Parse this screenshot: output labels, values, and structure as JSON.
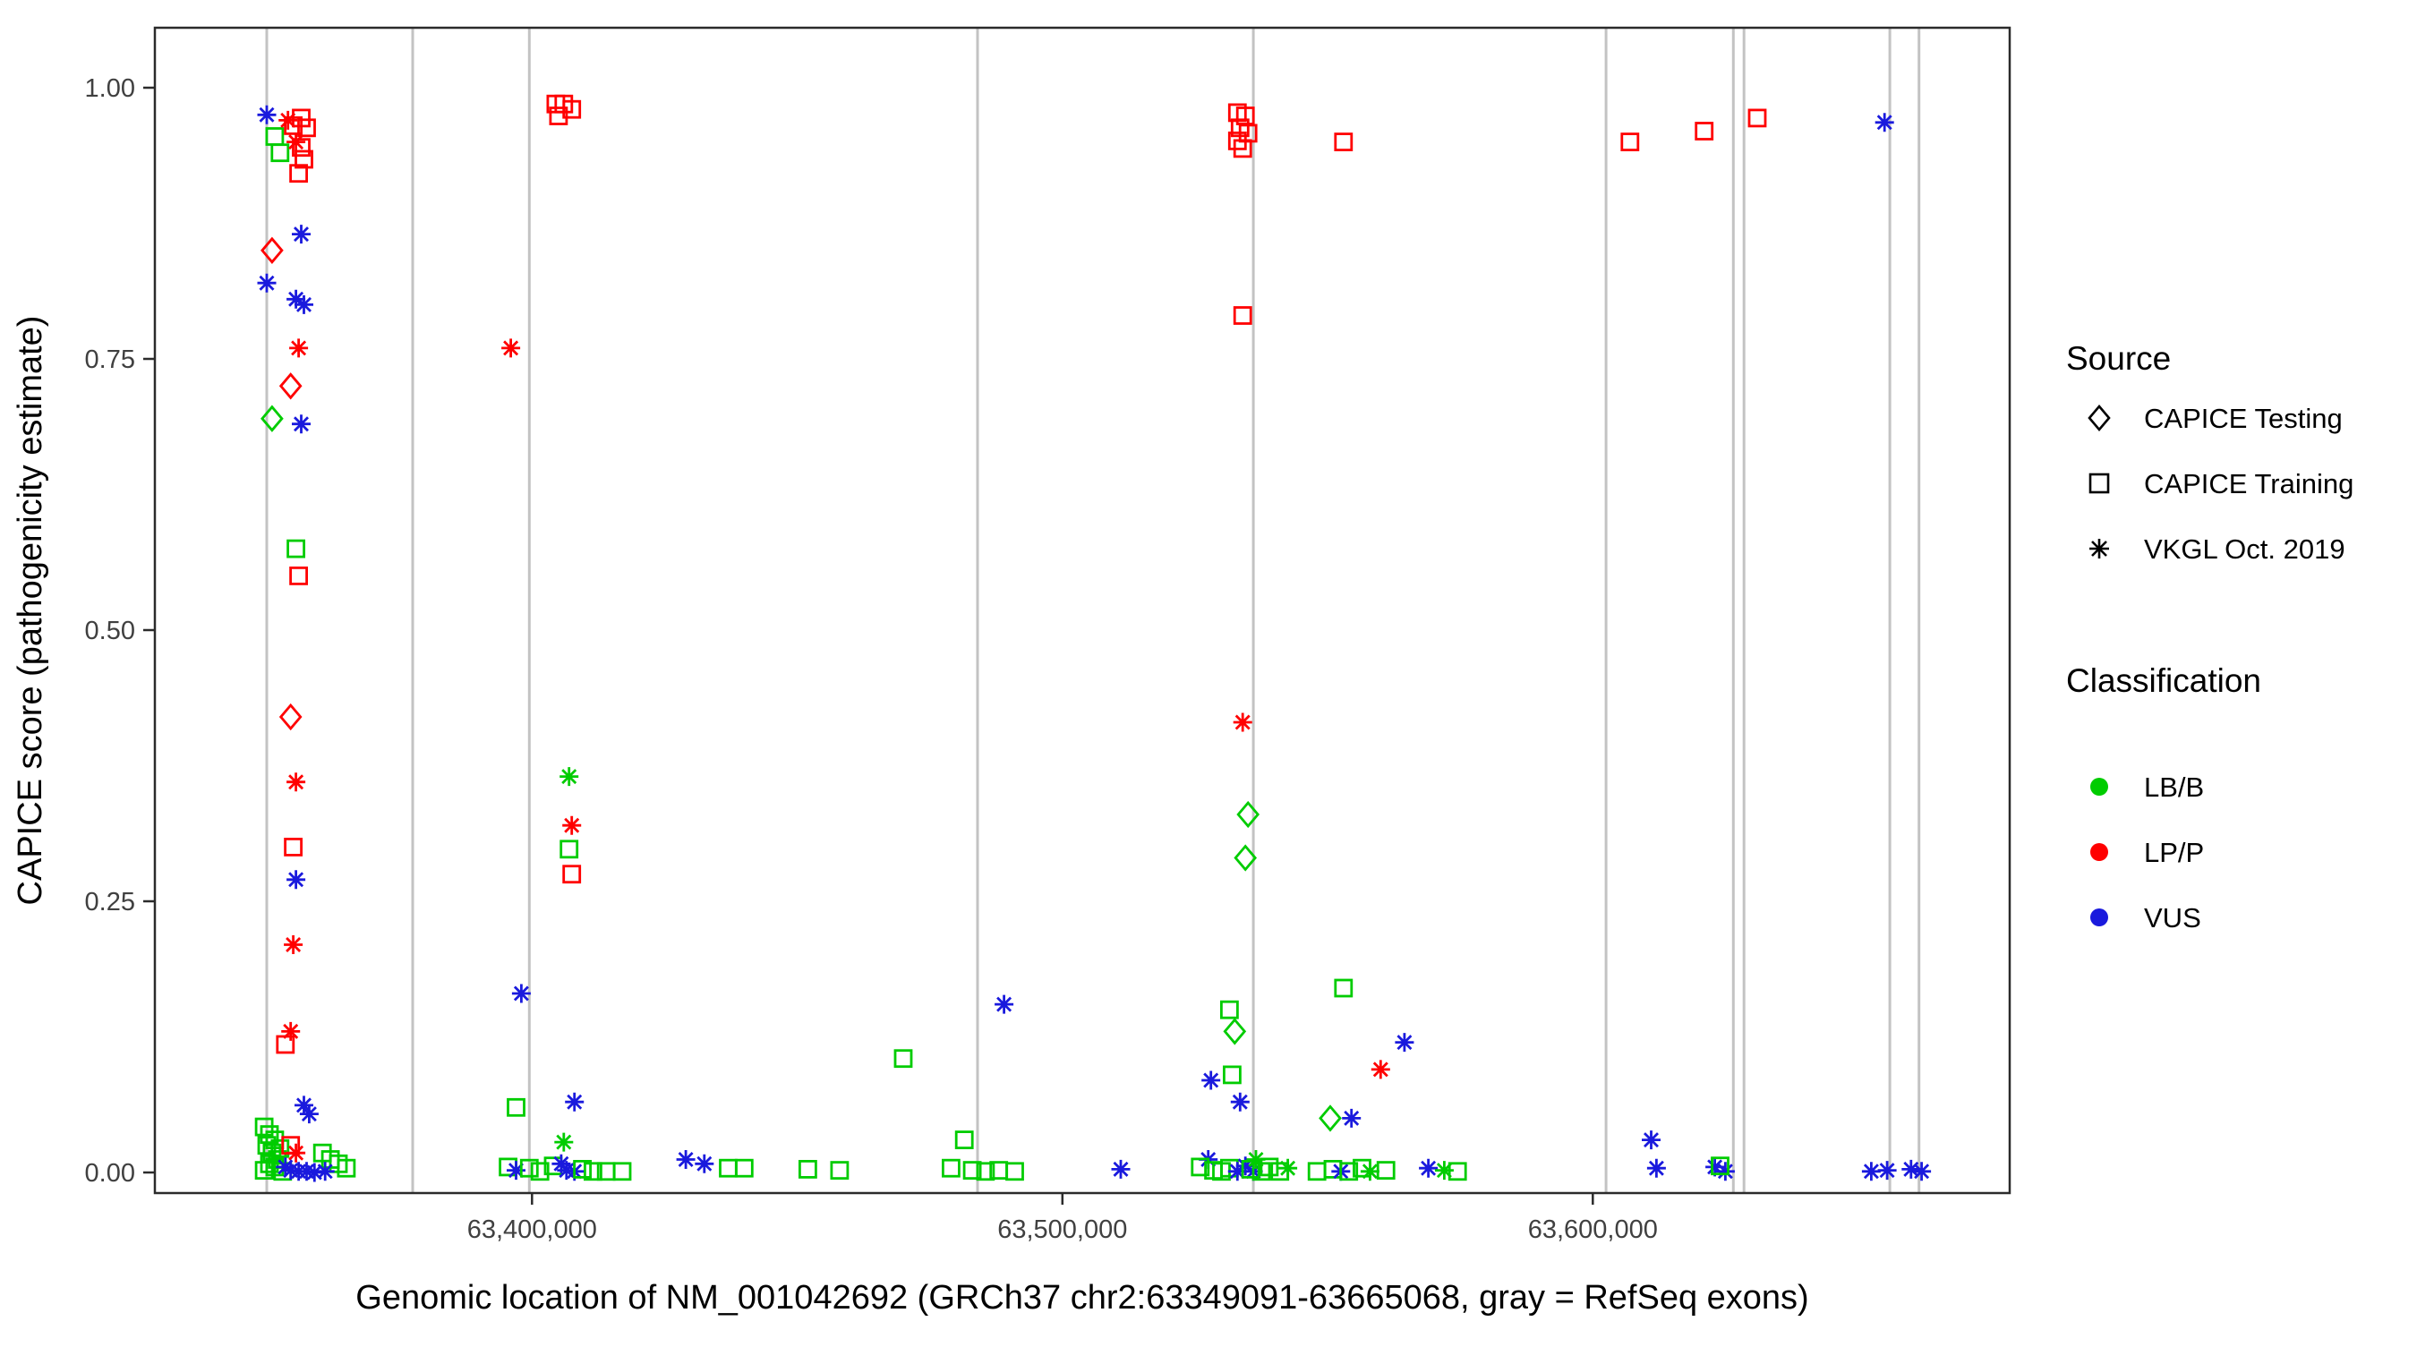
{
  "chart_data": {
    "type": "scatter",
    "title": "",
    "xlabel": "Genomic location of NM_001042692 (GRCh37 chr2:63349091-63665068, gray = RefSeq exons)",
    "ylabel": "CAPICE score (pathogenicity estimate)",
    "x_domain": [
      63328900,
      63678600
    ],
    "y_domain": [
      0,
      1
    ],
    "x_ticks": [
      {
        "v": 63400000,
        "label": "63,400,000"
      },
      {
        "v": 63500000,
        "label": "63,500,000"
      },
      {
        "v": 63600000,
        "label": "63,600,000"
      }
    ],
    "y_ticks": [
      {
        "v": 0.0,
        "label": "0.00"
      },
      {
        "v": 0.25,
        "label": "0.25"
      },
      {
        "v": 0.5,
        "label": "0.50"
      },
      {
        "v": 0.75,
        "label": "0.75"
      },
      {
        "v": 1.0,
        "label": "1.00"
      }
    ],
    "grid": false,
    "exon_color": "#c3c3c3",
    "exons": [
      63350000,
      63377500,
      63399500,
      63484000,
      63536000,
      63602500,
      63626500,
      63628500,
      63656000,
      63661500
    ],
    "colors": {
      "g": "#00cc00",
      "r": "#ff0000",
      "b": "#1a1add"
    },
    "shapes": {
      "d": "CAPICE Testing (diamond)",
      "q": "CAPICE Training (square)",
      "a": "VKGL Oct. 2019 (asterisk)"
    },
    "legend": {
      "source": {
        "title": "Source",
        "items": [
          {
            "label": "CAPICE Testing",
            "shape": "diamond"
          },
          {
            "label": "CAPICE Training",
            "shape": "square"
          },
          {
            "label": "VKGL Oct. 2019",
            "shape": "asterisk"
          }
        ]
      },
      "classification": {
        "title": "Classification",
        "items": [
          {
            "label": "LB/B",
            "color_key": "g"
          },
          {
            "label": "LP/P",
            "color_key": "r"
          },
          {
            "label": "VUS",
            "color_key": "b"
          }
        ]
      }
    },
    "points": [
      [
        63350000,
        0.975,
        "a",
        "b"
      ],
      [
        63351500,
        0.955,
        "q",
        "g"
      ],
      [
        63352500,
        0.94,
        "q",
        "g"
      ],
      [
        63354000,
        0.97,
        "a",
        "r"
      ],
      [
        63355000,
        0.965,
        "q",
        "r"
      ],
      [
        63356500,
        0.972,
        "q",
        "r"
      ],
      [
        63357500,
        0.963,
        "q",
        "r"
      ],
      [
        63355500,
        0.95,
        "a",
        "r"
      ],
      [
        63356500,
        0.945,
        "q",
        "r"
      ],
      [
        63357000,
        0.934,
        "q",
        "r"
      ],
      [
        63356000,
        0.921,
        "q",
        "r"
      ],
      [
        63356500,
        0.865,
        "a",
        "b"
      ],
      [
        63351000,
        0.85,
        "d",
        "r"
      ],
      [
        63350000,
        0.82,
        "a",
        "b"
      ],
      [
        63355500,
        0.805,
        "a",
        "b"
      ],
      [
        63357000,
        0.8,
        "a",
        "b"
      ],
      [
        63356000,
        0.76,
        "a",
        "r"
      ],
      [
        63354500,
        0.725,
        "d",
        "r"
      ],
      [
        63351000,
        0.695,
        "d",
        "g"
      ],
      [
        63356500,
        0.69,
        "a",
        "b"
      ],
      [
        63355500,
        0.575,
        "q",
        "g"
      ],
      [
        63356000,
        0.55,
        "q",
        "r"
      ],
      [
        63354500,
        0.42,
        "d",
        "r"
      ],
      [
        63355500,
        0.36,
        "a",
        "r"
      ],
      [
        63355000,
        0.3,
        "q",
        "r"
      ],
      [
        63355500,
        0.27,
        "a",
        "b"
      ],
      [
        63355000,
        0.21,
        "a",
        "r"
      ],
      [
        63354500,
        0.13,
        "a",
        "r"
      ],
      [
        63353500,
        0.118,
        "q",
        "r"
      ],
      [
        63357000,
        0.062,
        "a",
        "b"
      ],
      [
        63358000,
        0.054,
        "a",
        "b"
      ],
      [
        63349500,
        0.042,
        "q",
        "g"
      ],
      [
        63350500,
        0.035,
        "q",
        "g"
      ],
      [
        63351500,
        0.03,
        "q",
        "g"
      ],
      [
        63350000,
        0.025,
        "q",
        "g"
      ],
      [
        63352500,
        0.022,
        "q",
        "g"
      ],
      [
        63351000,
        0.018,
        "q",
        "g"
      ],
      [
        63352000,
        0.012,
        "q",
        "g"
      ],
      [
        63350500,
        0.008,
        "q",
        "g"
      ],
      [
        63351500,
        0.005,
        "q",
        "g"
      ],
      [
        63349500,
        0.002,
        "q",
        "g"
      ],
      [
        63353000,
        0.001,
        "q",
        "g"
      ],
      [
        63354500,
        0.025,
        "q",
        "r"
      ],
      [
        63355500,
        0.018,
        "a",
        "r"
      ],
      [
        63353500,
        0.005,
        "a",
        "b"
      ],
      [
        63354500,
        0.002,
        "a",
        "b"
      ],
      [
        63356000,
        0.001,
        "a",
        "b"
      ],
      [
        63357500,
        0.001,
        "a",
        "b"
      ],
      [
        63359000,
        0.0,
        "a",
        "b"
      ],
      [
        63360500,
        0.018,
        "q",
        "g"
      ],
      [
        63362000,
        0.012,
        "q",
        "g"
      ],
      [
        63363500,
        0.008,
        "q",
        "g"
      ],
      [
        63365000,
        0.004,
        "q",
        "g"
      ],
      [
        63361000,
        0.001,
        "a",
        "b"
      ],
      [
        63404500,
        0.985,
        "q",
        "r"
      ],
      [
        63406000,
        0.985,
        "q",
        "r"
      ],
      [
        63407500,
        0.98,
        "q",
        "r"
      ],
      [
        63405000,
        0.974,
        "q",
        "r"
      ],
      [
        63396000,
        0.76,
        "a",
        "r"
      ],
      [
        63407000,
        0.365,
        "a",
        "g"
      ],
      [
        63407500,
        0.32,
        "a",
        "r"
      ],
      [
        63407000,
        0.298,
        "q",
        "g"
      ],
      [
        63407500,
        0.275,
        "q",
        "r"
      ],
      [
        63398000,
        0.165,
        "a",
        "b"
      ],
      [
        63397000,
        0.06,
        "q",
        "g"
      ],
      [
        63408000,
        0.065,
        "a",
        "b"
      ],
      [
        63406000,
        0.028,
        "a",
        "g"
      ],
      [
        63395500,
        0.005,
        "q",
        "g"
      ],
      [
        63397000,
        0.002,
        "a",
        "b"
      ],
      [
        63399500,
        0.004,
        "q",
        "g"
      ],
      [
        63401500,
        0.001,
        "q",
        "g"
      ],
      [
        63404000,
        0.006,
        "q",
        "g"
      ],
      [
        63405500,
        0.008,
        "a",
        "b"
      ],
      [
        63406500,
        0.002,
        "a",
        "b"
      ],
      [
        63408000,
        0.001,
        "a",
        "b"
      ],
      [
        63409500,
        0.003,
        "q",
        "g"
      ],
      [
        63411500,
        0.001,
        "q",
        "g"
      ],
      [
        63414000,
        0.001,
        "q",
        "g"
      ],
      [
        63417000,
        0.001,
        "q",
        "g"
      ],
      [
        63429000,
        0.012,
        "a",
        "b"
      ],
      [
        63432500,
        0.008,
        "a",
        "b"
      ],
      [
        63437000,
        0.004,
        "q",
        "g"
      ],
      [
        63440000,
        0.004,
        "q",
        "g"
      ],
      [
        63452000,
        0.003,
        "q",
        "g"
      ],
      [
        63458000,
        0.002,
        "q",
        "g"
      ],
      [
        63470000,
        0.105,
        "q",
        "g"
      ],
      [
        63479000,
        0.004,
        "q",
        "g"
      ],
      [
        63481500,
        0.03,
        "q",
        "g"
      ],
      [
        63483000,
        0.002,
        "q",
        "g"
      ],
      [
        63485500,
        0.001,
        "q",
        "g"
      ],
      [
        63489000,
        0.155,
        "a",
        "b"
      ],
      [
        63488000,
        0.002,
        "q",
        "g"
      ],
      [
        63491000,
        0.001,
        "q",
        "g"
      ],
      [
        63511000,
        0.003,
        "a",
        "b"
      ],
      [
        63533000,
        0.977,
        "q",
        "r"
      ],
      [
        63534500,
        0.974,
        "q",
        "r"
      ],
      [
        63533500,
        0.963,
        "q",
        "r"
      ],
      [
        63535000,
        0.958,
        "q",
        "r"
      ],
      [
        63533000,
        0.951,
        "q",
        "r"
      ],
      [
        63534000,
        0.944,
        "q",
        "r"
      ],
      [
        63534000,
        0.79,
        "q",
        "r"
      ],
      [
        63534000,
        0.415,
        "a",
        "r"
      ],
      [
        63535000,
        0.33,
        "d",
        "g"
      ],
      [
        63534500,
        0.29,
        "d",
        "g"
      ],
      [
        63531500,
        0.15,
        "q",
        "g"
      ],
      [
        63532500,
        0.13,
        "d",
        "g"
      ],
      [
        63532000,
        0.09,
        "q",
        "g"
      ],
      [
        63528000,
        0.085,
        "a",
        "b"
      ],
      [
        63533500,
        0.065,
        "a",
        "b"
      ],
      [
        63527500,
        0.012,
        "a",
        "b"
      ],
      [
        63526000,
        0.005,
        "q",
        "g"
      ],
      [
        63528500,
        0.002,
        "q",
        "g"
      ],
      [
        63530000,
        0.001,
        "q",
        "g"
      ],
      [
        63531500,
        0.004,
        "q",
        "g"
      ],
      [
        63533000,
        0.001,
        "a",
        "b"
      ],
      [
        63534500,
        0.006,
        "a",
        "b"
      ],
      [
        63536000,
        0.001,
        "a",
        "b"
      ],
      [
        63535500,
        0.003,
        "q",
        "g"
      ],
      [
        63537500,
        0.001,
        "q",
        "g"
      ],
      [
        63539000,
        0.005,
        "q",
        "g"
      ],
      [
        63541000,
        0.001,
        "q",
        "g"
      ],
      [
        63536500,
        0.012,
        "a",
        "g"
      ],
      [
        63542500,
        0.004,
        "a",
        "g"
      ],
      [
        63553000,
        0.95,
        "q",
        "r"
      ],
      [
        63553000,
        0.17,
        "q",
        "g"
      ],
      [
        63550500,
        0.05,
        "d",
        "g"
      ],
      [
        63554500,
        0.05,
        "a",
        "b"
      ],
      [
        63560000,
        0.095,
        "a",
        "r"
      ],
      [
        63564500,
        0.12,
        "a",
        "b"
      ],
      [
        63548000,
        0.001,
        "q",
        "g"
      ],
      [
        63551000,
        0.003,
        "q",
        "g"
      ],
      [
        63552500,
        0.001,
        "a",
        "b"
      ],
      [
        63554000,
        0.001,
        "q",
        "g"
      ],
      [
        63556500,
        0.004,
        "q",
        "g"
      ],
      [
        63558000,
        0.001,
        "a",
        "g"
      ],
      [
        63561000,
        0.002,
        "q",
        "g"
      ],
      [
        63569000,
        0.004,
        "a",
        "b"
      ],
      [
        63572000,
        0.002,
        "a",
        "g"
      ],
      [
        63574500,
        0.001,
        "q",
        "g"
      ],
      [
        63607000,
        0.95,
        "q",
        "r"
      ],
      [
        63611000,
        0.03,
        "a",
        "b"
      ],
      [
        63612000,
        0.004,
        "a",
        "b"
      ],
      [
        63621000,
        0.96,
        "q",
        "r"
      ],
      [
        63631000,
        0.972,
        "q",
        "r"
      ],
      [
        63623000,
        0.005,
        "a",
        "b"
      ],
      [
        63625000,
        0.001,
        "a",
        "b"
      ],
      [
        63624000,
        0.006,
        "q",
        "g"
      ],
      [
        63655000,
        0.968,
        "a",
        "b"
      ],
      [
        63652500,
        0.001,
        "a",
        "b"
      ],
      [
        63655500,
        0.002,
        "a",
        "b"
      ],
      [
        63660000,
        0.003,
        "a",
        "b"
      ],
      [
        63662000,
        0.001,
        "a",
        "b"
      ]
    ]
  }
}
